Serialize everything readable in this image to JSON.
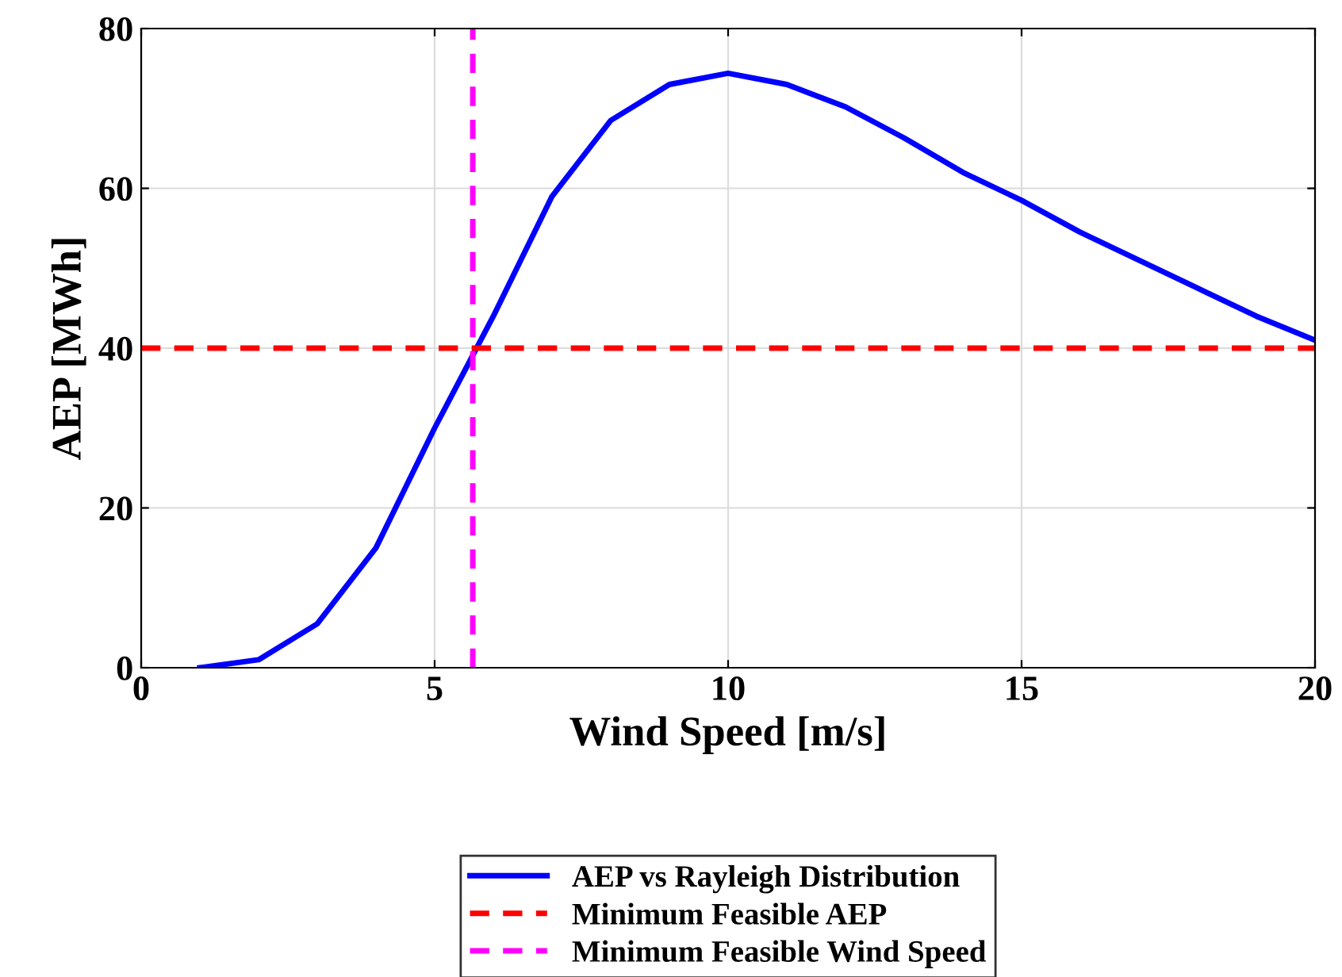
{
  "chart_data": {
    "type": "line",
    "xlabel": "Wind Speed [m/s]",
    "ylabel": "AEP [MWh]",
    "x": [
      1,
      2,
      3,
      4,
      5,
      6,
      7,
      8,
      9,
      10,
      11,
      12,
      13,
      14,
      15,
      16,
      17,
      18,
      19,
      20
    ],
    "series": [
      {
        "name": "AEP vs Rayleigh Distribution",
        "color": "#0000ff",
        "values": [
          0,
          1,
          5.5,
          15,
          30,
          44,
          59,
          68.5,
          73,
          74.4,
          73,
          70.2,
          66.3,
          62,
          58.5,
          54.5,
          51,
          47.5,
          44,
          41
        ]
      }
    ],
    "ref_lines": [
      {
        "axis": "y",
        "value": 40,
        "label": "Minimum Feasible AEP",
        "color": "#ff0000",
        "line_style": "dashed"
      },
      {
        "axis": "x",
        "value": 5.65,
        "label": "Minimum Feasible Wind Speed",
        "color": "#ff00ff",
        "line_style": "dashed"
      }
    ],
    "xlim": [
      0,
      20
    ],
    "ylim": [
      0,
      80
    ],
    "xticks": [
      0,
      5,
      10,
      15,
      20
    ],
    "yticks": [
      0,
      20,
      40,
      60,
      80
    ],
    "grid": true,
    "legend": "bottom",
    "line_style": "solid",
    "marker": "none"
  }
}
